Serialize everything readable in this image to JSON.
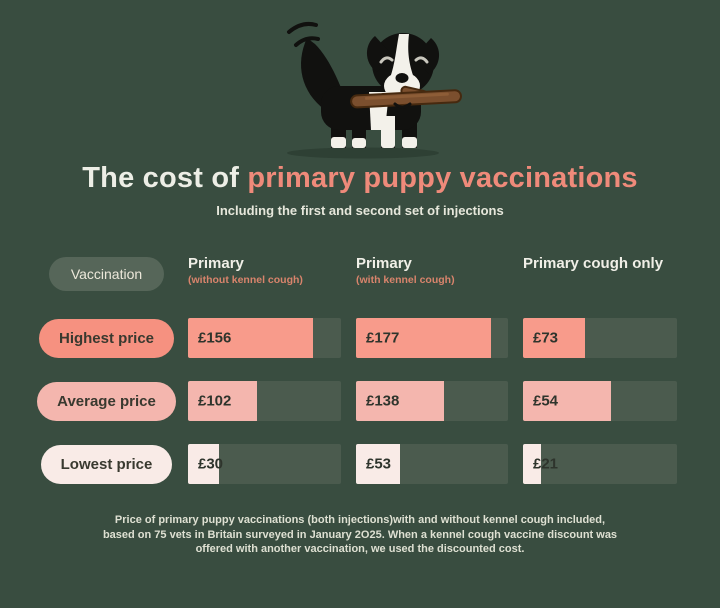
{
  "header": {
    "title_prefix": "The cost of ",
    "title_highlight": "primary puppy vaccinations",
    "subtitle": "Including the first and second set of injections",
    "title_color": "#edeee6",
    "highlight_color": "#ef8a7a",
    "background_color": "#394d40"
  },
  "table": {
    "label_header": "Vaccination",
    "columns": [
      {
        "title": "Primary",
        "subtitle": "(without kennel cough)"
      },
      {
        "title": "Primary",
        "subtitle": "(with kennel cough)"
      },
      {
        "title": "Primary cough only",
        "subtitle": ""
      }
    ],
    "rows": [
      {
        "label": "Highest price",
        "pill_color": "#f69180",
        "fill_color": "#f89b8b",
        "values": [
          "£156",
          "£177",
          "£73"
        ],
        "fill_pct": [
          82,
          89,
          40
        ]
      },
      {
        "label": "Average price",
        "pill_color": "#f4b6ae",
        "fill_color": "#f4b6ae",
        "values": [
          "£102",
          "£138",
          "£54"
        ],
        "fill_pct": [
          45,
          58,
          57
        ]
      },
      {
        "label": "Lowest price",
        "pill_color": "#f9ebe7",
        "fill_color": "#f9ebe7",
        "values": [
          "£30",
          "£53",
          "£21"
        ],
        "fill_pct": [
          20,
          29,
          12
        ]
      }
    ],
    "track_color": "#4b5b4e",
    "value_text_color": "#2e342c",
    "vaccination_pill_bg": "#566659"
  },
  "footer": {
    "lines": [
      "Price of primary puppy vaccinations (both injections)with and without kennel cough included,",
      "based on 75 vets in Britain surveyed in January 2O25. When a kennel cough vaccine discount was",
      "offered with another vaccination, we used the discounted cost."
    ]
  },
  "chart_data": {
    "type": "bar",
    "orientation": "horizontal",
    "title": "The cost of primary puppy vaccinations",
    "subtitle": "Including the first and second set of injections",
    "unit": "GBP (£)",
    "categories": [
      "Primary (without kennel cough)",
      "Primary (with kennel cough)",
      "Primary cough only"
    ],
    "series": [
      {
        "name": "Highest price",
        "values": [
          156,
          177,
          73
        ]
      },
      {
        "name": "Average price",
        "values": [
          102,
          138,
          54
        ]
      },
      {
        "name": "Lowest price",
        "values": [
          30,
          53,
          21
        ]
      }
    ],
    "legend_position": "left-row-labels",
    "grid": false,
    "note": "Based on 75 vets in Britain surveyed in January 2025; discounted kennel-cough costs used where offered."
  }
}
